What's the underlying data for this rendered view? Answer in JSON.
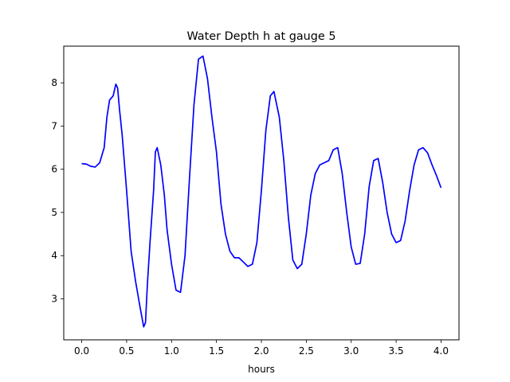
{
  "chart_data": {
    "type": "line",
    "title": "Water Depth h at gauge 5",
    "xlabel": "hours",
    "ylabel": "",
    "xlim": [
      -0.2,
      4.2
    ],
    "ylim": [
      2.05,
      8.85
    ],
    "grid": false,
    "xticks": [
      0.0,
      0.5,
      1.0,
      1.5,
      2.0,
      2.5,
      3.0,
      3.5,
      4.0
    ],
    "xtick_labels": [
      "0.0",
      "0.5",
      "1.0",
      "1.5",
      "2.0",
      "2.5",
      "3.0",
      "3.5",
      "4.0"
    ],
    "yticks": [
      3,
      4,
      5,
      6,
      7,
      8
    ],
    "ytick_labels": [
      "3",
      "4",
      "5",
      "6",
      "7",
      "8"
    ],
    "series": [
      {
        "color": "#0000ff",
        "x": [
          0.0,
          0.05,
          0.1,
          0.15,
          0.2,
          0.25,
          0.28,
          0.31,
          0.35,
          0.38,
          0.4,
          0.42,
          0.45,
          0.5,
          0.55,
          0.6,
          0.65,
          0.69,
          0.71,
          0.73,
          0.76,
          0.8,
          0.82,
          0.84,
          0.86,
          0.88,
          0.92,
          0.95,
          1.0,
          1.05,
          1.1,
          1.15,
          1.2,
          1.25,
          1.3,
          1.35,
          1.4,
          1.45,
          1.5,
          1.55,
          1.6,
          1.65,
          1.7,
          1.75,
          1.8,
          1.85,
          1.9,
          1.95,
          2.0,
          2.05,
          2.1,
          2.14,
          2.2,
          2.25,
          2.3,
          2.35,
          2.4,
          2.45,
          2.5,
          2.55,
          2.6,
          2.65,
          2.7,
          2.75,
          2.8,
          2.85,
          2.9,
          2.95,
          3.0,
          3.05,
          3.1,
          3.15,
          3.2,
          3.25,
          3.3,
          3.35,
          3.4,
          3.45,
          3.5,
          3.55,
          3.6,
          3.65,
          3.7,
          3.75,
          3.8,
          3.85,
          3.9,
          3.95,
          4.0
        ],
        "y": [
          6.13,
          6.12,
          6.07,
          6.05,
          6.15,
          6.5,
          7.2,
          7.6,
          7.7,
          7.97,
          7.88,
          7.4,
          6.8,
          5.5,
          4.1,
          3.4,
          2.8,
          2.35,
          2.45,
          3.3,
          4.3,
          5.5,
          6.4,
          6.5,
          6.3,
          6.1,
          5.4,
          4.6,
          3.8,
          3.2,
          3.15,
          4.0,
          5.8,
          7.5,
          8.55,
          8.62,
          8.1,
          7.2,
          6.4,
          5.2,
          4.5,
          4.1,
          3.95,
          3.95,
          3.85,
          3.75,
          3.8,
          4.3,
          5.5,
          6.9,
          7.7,
          7.8,
          7.2,
          6.2,
          4.9,
          3.9,
          3.7,
          3.8,
          4.5,
          5.4,
          5.9,
          6.1,
          6.15,
          6.2,
          6.45,
          6.5,
          5.9,
          5.0,
          4.2,
          3.8,
          3.82,
          4.5,
          5.6,
          6.2,
          6.25,
          5.7,
          5.0,
          4.5,
          4.3,
          4.35,
          4.8,
          5.5,
          6.1,
          6.45,
          6.5,
          6.38,
          6.1,
          5.85,
          5.57
        ]
      }
    ]
  }
}
